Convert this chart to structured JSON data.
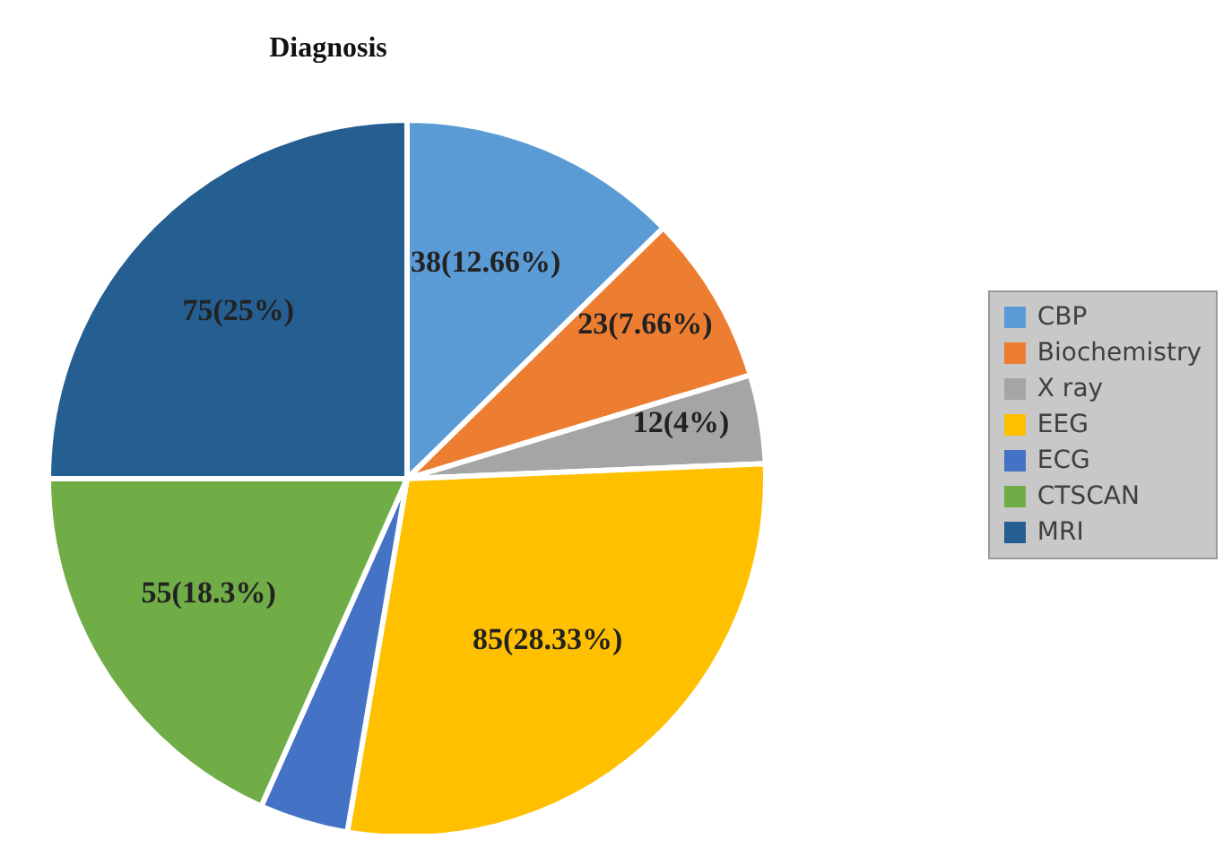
{
  "chart_data": {
    "type": "pie",
    "title": "Diagnosis",
    "categories": [
      "CBP",
      "Biochemistry",
      "X ray",
      "EEG",
      "ECG",
      "CTSCAN",
      "MRI"
    ],
    "values": [
      38,
      23,
      12,
      85,
      12,
      55,
      75
    ],
    "value_labels": [
      "38(12.66%)",
      "23(7.66%)",
      "12(4%)",
      "85(28.33%)",
      null,
      "55(18.3%)",
      "75(25%)"
    ],
    "colors": [
      "#5b9bd5",
      "#ed7d31",
      "#a5a5a5",
      "#ffc000",
      "#4472c4",
      "#70ad47",
      "#255e91"
    ],
    "legend": "right"
  }
}
